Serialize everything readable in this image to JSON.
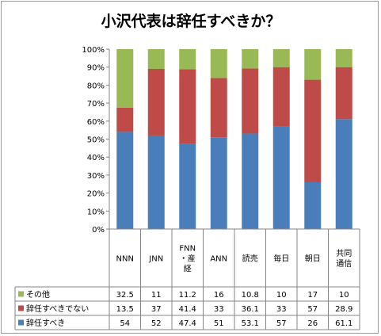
{
  "chart_data": {
    "type": "bar",
    "stacked": "percent",
    "title": "小沢代表は辞任すべきか？",
    "categories": [
      "NNN",
      "JNN",
      "FNN・産経",
      "ANN",
      "読売",
      "毎日",
      "朝日",
      "共同通信"
    ],
    "category_lines": [
      [
        "NNN"
      ],
      [
        "JNN"
      ],
      [
        "FNN",
        "・産",
        "経"
      ],
      [
        "ANN"
      ],
      [
        "読売"
      ],
      [
        "毎日"
      ],
      [
        "朝日"
      ],
      [
        "共同",
        "通信"
      ]
    ],
    "series": [
      {
        "name": "辞任すべき",
        "color": "#4a7ebb",
        "values": [
          54,
          52,
          47.4,
          51,
          53.1,
          57,
          26,
          61.1
        ],
        "labels": [
          "54",
          "52",
          "47.4",
          "51",
          "53.1",
          "57",
          "26",
          "61.1"
        ]
      },
      {
        "name": "辞任すべきでない",
        "color": "#be4b48",
        "values": [
          13.5,
          37,
          41.4,
          33,
          36.1,
          33,
          57,
          28.9
        ],
        "labels": [
          "13.5",
          "37",
          "41.4",
          "33",
          "36.1",
          "33",
          "57",
          "28.9"
        ]
      },
      {
        "name": "その他",
        "color": "#98b954",
        "values": [
          32.5,
          11,
          11.2,
          16,
          10.8,
          10,
          17,
          10
        ],
        "labels": [
          "32.5",
          "11",
          "11.2",
          "16",
          "10.8",
          "10",
          "17",
          "10"
        ]
      }
    ],
    "y_ticks": [
      "0%",
      "10%",
      "20%",
      "30%",
      "40%",
      "50%",
      "60%",
      "70%",
      "80%",
      "90%",
      "100%"
    ],
    "ylim": [
      0,
      100
    ],
    "grid": false,
    "legend": "data-table",
    "xlabel": "",
    "ylabel": ""
  }
}
